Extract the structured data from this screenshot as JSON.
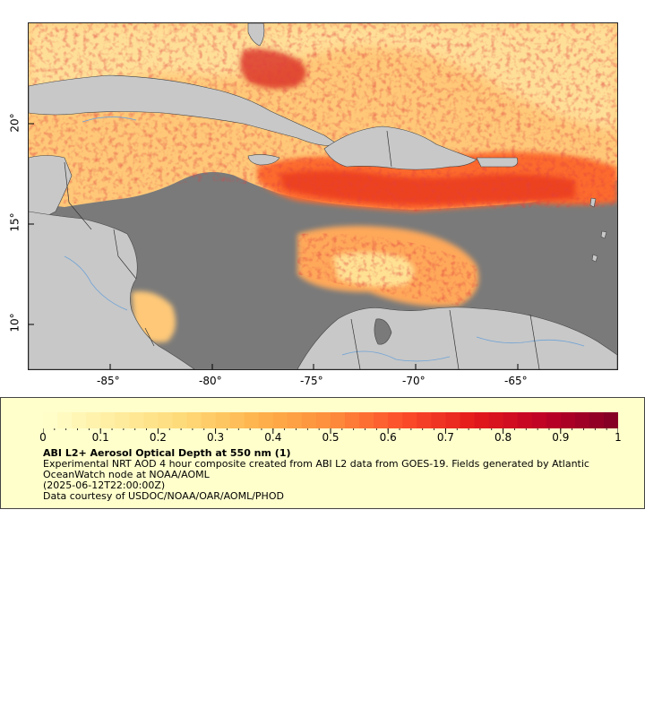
{
  "map": {
    "lon_ticks": [
      "-85°",
      "-80°",
      "-75°",
      "-70°",
      "-65°"
    ],
    "lat_ticks": [
      "20°",
      "15°",
      "10°"
    ],
    "colors": {
      "ocean": "#7a7a7a",
      "land": "#c8c8c8",
      "rivers": "#6fa3d6",
      "borders": "#444444"
    }
  },
  "legend": {
    "title": "ABI L2+ Aerosol Optical Depth at 550 nm (1)",
    "line1": "Experimental NRT AOD 4 hour composite created from ABI L2 data from GOES-19. Fields generated by Atlantic OceanWatch node at NOAA/AOML",
    "line2": "(2025-06-12T22:00:00Z)",
    "line3": "Data courtesy of USDOC/NOAA/OAR/AOML/PHOD",
    "scale_labels": [
      "0",
      "0.1",
      "0.2",
      "0.3",
      "0.4",
      "0.5",
      "0.6",
      "0.7",
      "0.8",
      "0.9",
      "1"
    ],
    "scale_min": 0,
    "scale_max": 1,
    "colormap": [
      "#ffffcc",
      "#ffeda0",
      "#fed976",
      "#feb24c",
      "#fd8d3c",
      "#fc4e2a",
      "#e31a1c",
      "#bd0026",
      "#800026"
    ],
    "background": "#ffffcc"
  }
}
